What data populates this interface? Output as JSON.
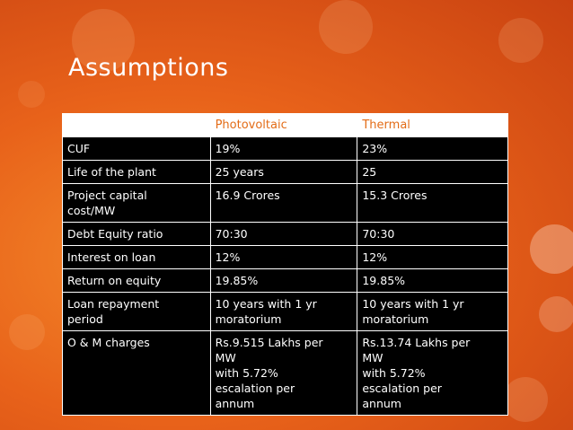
{
  "slide": {
    "title": "Assumptions"
  },
  "table": {
    "headers": [
      "",
      "Photovoltaic",
      "Thermal"
    ],
    "rows": [
      [
        "CUF",
        "19%",
        "23%"
      ],
      [
        "Life of the plant",
        "25 years",
        "25"
      ],
      [
        "Project capital\ncost/MW",
        "16.9 Crores",
        "15.3 Crores"
      ],
      [
        "Debt Equity ratio",
        "70:30",
        "70:30"
      ],
      [
        "Interest on loan",
        "12%",
        "12%"
      ],
      [
        "Return on equity",
        "19.85%",
        "19.85%"
      ],
      [
        "Loan repayment\nperiod",
        "10 years with 1 yr\nmoratorium",
        "10 years with 1 yr\nmoratorium"
      ],
      [
        "O & M charges",
        "Rs.9.515 Lakhs per\nMW\nwith 5.72%\nescalation per\nannum",
        "Rs.13.74 Lakhs per\nMW\nwith 5.72%\nescalation per\nannum"
      ]
    ]
  },
  "colors": {
    "background": "#e8621a",
    "header_text": "#e36c17",
    "cell_background": "#000000"
  }
}
